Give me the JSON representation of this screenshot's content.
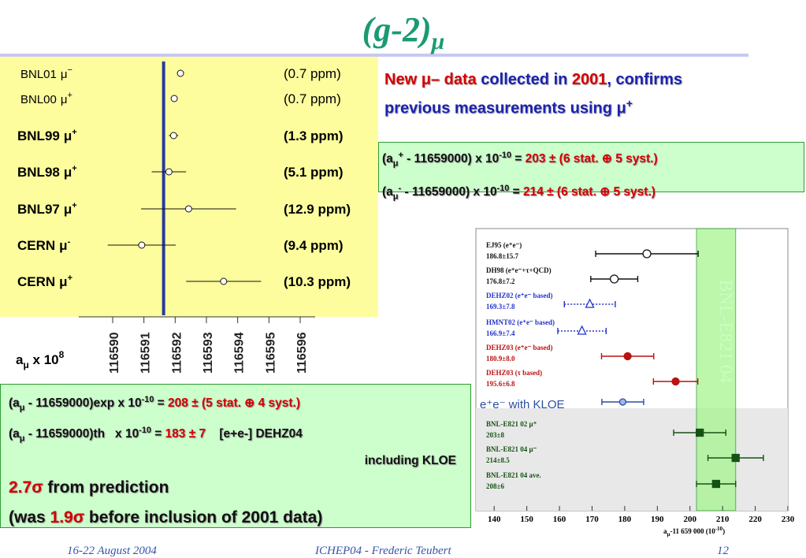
{
  "title": {
    "base": "(g-2)",
    "sub": "μ"
  },
  "left_chart": {
    "type": "scatter",
    "xticks": [
      116590,
      116591,
      116592,
      116593,
      116594,
      116595,
      116596
    ],
    "reference": 116591.63,
    "axis_label": {
      "base": "a",
      "sub": "μ",
      "mid": " x 10",
      "sup": "8"
    },
    "entries": [
      {
        "name": "BNL01",
        "sym": "μ",
        "charge": "−",
        "precision": "(0.7 ppm)",
        "value": 116592.17
      },
      {
        "name": "BNL00",
        "sym": "μ",
        "charge": "+",
        "precision": "(0.7 ppm)",
        "value": 116591.97
      },
      {
        "name": "BNL99",
        "sym": "μ",
        "charge": "+",
        "precision": "(1.3 ppm)",
        "value": 116591.95,
        "error": 0.15
      },
      {
        "name": "BNL98",
        "sym": "μ",
        "charge": "+",
        "precision": "(5.1 ppm)",
        "value": 116591.8,
        "error": 0.55
      },
      {
        "name": "BNL97",
        "sym": "μ",
        "charge": "+",
        "precision": "(12.9 ppm)",
        "value": 116592.43,
        "error": 1.52
      },
      {
        "name": "CERN",
        "sym": "μ",
        "charge": "-",
        "precision": "(9.4 ppm)",
        "value": 116590.93,
        "error": 1.09
      },
      {
        "name": "CERN",
        "sym": "μ",
        "charge": "+",
        "precision": "(10.3 ppm)",
        "value": 116593.55,
        "error": 1.2
      }
    ]
  },
  "headline": {
    "line1": [
      "New ",
      "μ",
      "– data",
      " collected in ",
      "2001",
      ", confirms"
    ],
    "line2": [
      "previous measurements using ",
      "μ",
      "+"
    ]
  },
  "results": [
    [
      "(a",
      "μ",
      "+",
      " - 11659000) x 10",
      "-10",
      " = ",
      "203 ± (6 stat. ⊕ 5 syst.)"
    ],
    [
      "(a",
      "μ",
      "-",
      " - 11659000) x 10",
      "-10",
      " = ",
      "214 ± (6 stat. ⊕ 5 syst.)"
    ]
  ],
  "right_chart": {
    "type": "scatter",
    "xlim": [
      134.4,
      230
    ],
    "xticks": [
      140,
      150,
      160,
      170,
      180,
      190,
      200,
      210,
      220,
      230
    ],
    "band": [
      202,
      214
    ],
    "band_label": "BNL-E821 04",
    "axis_label": {
      "base": "a",
      "sub": "μ",
      "mid": "-11 659 000 (10",
      "sup": "-10",
      "end": ")"
    },
    "entries": [
      {
        "label": "EJ95 (e⁺e⁻)",
        "value_label": "186.8±15.7",
        "value": 186.8,
        "error": 15.7,
        "color": "#111111",
        "marker": "open-circle"
      },
      {
        "label": "DH98 (e⁺e⁻+τ+QCD)",
        "value_label": "176.8±7.2",
        "value": 176.8,
        "error": 7.2,
        "color": "#111111",
        "marker": "open-circle"
      },
      {
        "label": "DEHZ02 (e⁺e⁻ based)",
        "value_label": "169.3±7.8",
        "value": 169.3,
        "error": 7.8,
        "color": "#2233cc",
        "marker": "open-triangle"
      },
      {
        "label": "HMNT02 (e⁺e⁻ based)",
        "value_label": "166.9±7.4",
        "value": 166.9,
        "error": 7.4,
        "color": "#2233cc",
        "marker": "open-triangle"
      },
      {
        "label": "DEHZ03 (e⁺e⁻ based)",
        "value_label": "180.9±8.0",
        "value": 180.9,
        "error": 8.0,
        "color": "#bb1111",
        "marker": "circle"
      },
      {
        "label": "DEHZ03 (τ based)",
        "value_label": "195.6±6.8",
        "value": 195.6,
        "error": 6.8,
        "color": "#bb1111",
        "marker": "circle"
      },
      {
        "label": "e⁺e⁻ with KLOE",
        "value": 179.4,
        "error": 6.4,
        "color": "#2b4ea0",
        "marker": "light-circle"
      },
      {
        "label": "BNL-E821 02 μ⁺",
        "value_label": "203±8",
        "value": 203,
        "error": 8,
        "color": "#145214",
        "marker": "square"
      },
      {
        "label": "BNL-E821 04 μ⁻",
        "value_label": "214±8.5",
        "value": 214,
        "error": 8.5,
        "color": "#145214",
        "marker": "square"
      },
      {
        "label": "BNL-E821 04 ave.",
        "value_label": "208±6",
        "value": 208,
        "error": 6,
        "color": "#145214",
        "marker": "square"
      }
    ]
  },
  "summary": {
    "exp": [
      "(a",
      "μ",
      " - 11659000)exp x 10",
      "-10",
      " = ",
      "208 ± (5 stat. ⊕ 4 syst.)"
    ],
    "th": [
      "(a",
      "μ",
      " - 11659000)th   x 10",
      "-10",
      " = ",
      "183 ± 7",
      "    [e+e-] DEHZ04"
    ],
    "note": "including KLOE",
    "deviation": [
      "2.7σ",
      " from prediction"
    ],
    "previous": [
      "(was ",
      "1.9σ",
      " before inclusion of 2001 data)"
    ]
  },
  "footer": {
    "date": "16-22 August 2004",
    "author": "ICHEP04 - Frederic Teubert",
    "page": "12"
  }
}
